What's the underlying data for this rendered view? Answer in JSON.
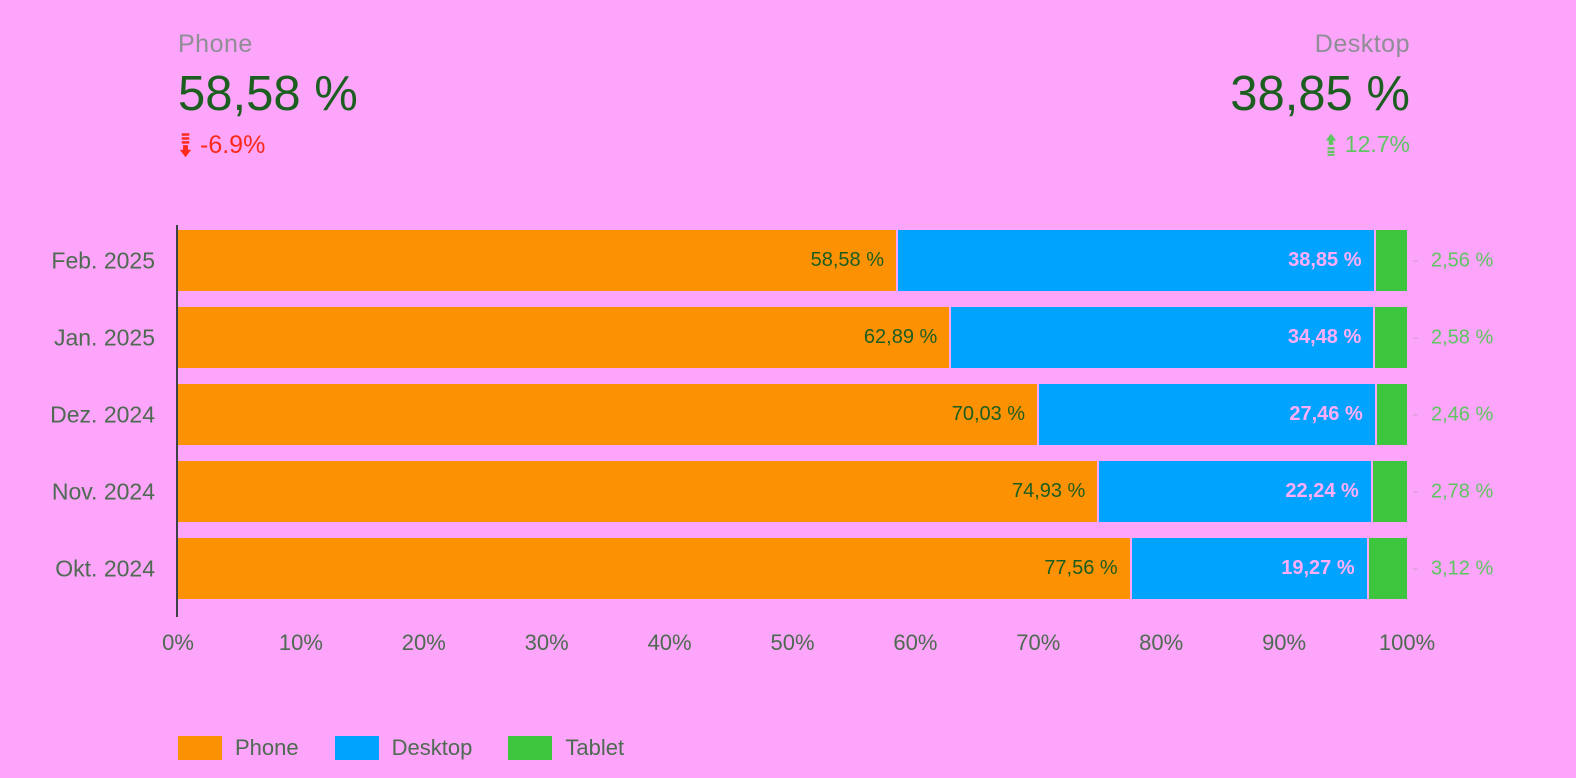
{
  "kpis": {
    "left": {
      "label": "Phone",
      "value": "58,58 %",
      "change": "-6.9%",
      "direction": "down"
    },
    "right": {
      "label": "Desktop",
      "value": "38,85 %",
      "change": "12.7%",
      "direction": "up"
    }
  },
  "colors": {
    "background": "#fca5fa",
    "phone": "#fb9103",
    "desktop": "#00a3fd",
    "tablet": "#3ec53e",
    "kpi_label": "#8f8e96",
    "kpi_value": "#1c5e20",
    "negative": "#fb2a1b",
    "positive": "#5ec562",
    "axis_text": "#4f6a52",
    "blue_label": "#ffadfc",
    "tablet_label": "#5ec562"
  },
  "icons": {
    "down": "arrow-down-icon",
    "up": "arrow-up-icon"
  },
  "chart_data": {
    "type": "bar",
    "orientation": "horizontal-stacked",
    "title": "",
    "categories": [
      "Feb. 2025",
      "Jan. 2025",
      "Dez. 2024",
      "Nov. 2024",
      "Okt. 2024"
    ],
    "series": [
      {
        "name": "Phone",
        "color": "#fb9103",
        "values": [
          58.58,
          62.89,
          70.03,
          74.93,
          77.56
        ],
        "labels": [
          "58,58 %",
          "62,89 %",
          "70,03 %",
          "74,93 %",
          "77,56 %"
        ]
      },
      {
        "name": "Desktop",
        "color": "#00a3fd",
        "values": [
          38.85,
          34.48,
          27.46,
          22.24,
          19.27
        ],
        "labels": [
          "38,85 %",
          "34,48 %",
          "27,46 %",
          "22,24 %",
          "19,27 %"
        ]
      },
      {
        "name": "Tablet",
        "color": "#3ec53e",
        "values": [
          2.56,
          2.58,
          2.46,
          2.78,
          3.12
        ],
        "labels": [
          "2,56 %",
          "2,58 %",
          "2,46 %",
          "2,78 %",
          "3,12 %"
        ]
      }
    ],
    "x_ticks": [
      "0%",
      "10%",
      "20%",
      "30%",
      "40%",
      "50%",
      "60%",
      "70%",
      "80%",
      "90%",
      "100%"
    ],
    "xlim": [
      0,
      100
    ],
    "grid": false,
    "legend_position": "bottom"
  },
  "legend": {
    "items": [
      {
        "label": "Phone",
        "color": "#fb9103"
      },
      {
        "label": "Desktop",
        "color": "#00a3fd"
      },
      {
        "label": "Tablet",
        "color": "#3ec53e"
      }
    ]
  }
}
